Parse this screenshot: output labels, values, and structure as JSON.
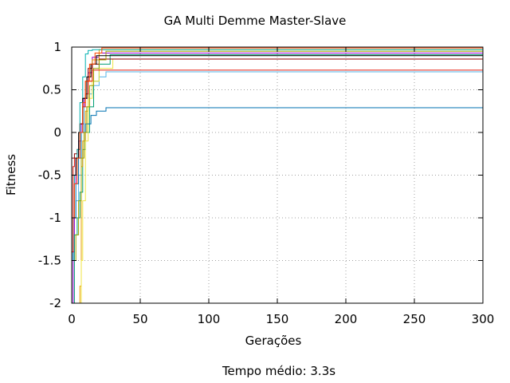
{
  "chart_data": {
    "type": "line",
    "title": "GA Multi Demme Master-Slave",
    "xlabel": "Gerações",
    "ylabel": "Fitness",
    "footer": "Tempo médio: 3.3s",
    "xlim": [
      0,
      300
    ],
    "ylim": [
      -2,
      1
    ],
    "xticks": [
      0,
      50,
      100,
      150,
      200,
      250,
      300
    ],
    "yticks": [
      -2,
      -1.5,
      -1,
      -0.5,
      0,
      0.5,
      1
    ],
    "ytick_labels": [
      "-2",
      "-1.5",
      "-1",
      "-0.5",
      "0",
      "0.5",
      "1"
    ],
    "grid": true,
    "legend": "none",
    "series": [
      {
        "color": "#9400d3",
        "x": [
          0,
          1,
          2,
          3,
          5,
          7,
          9,
          12,
          15,
          20,
          300
        ],
        "y": [
          -2,
          -1.4,
          -0.6,
          -0.3,
          -0.1,
          0.1,
          0.4,
          0.7,
          0.88,
          0.93,
          0.93
        ]
      },
      {
        "color": "#009e73",
        "x": [
          0,
          2,
          4,
          6,
          8,
          10,
          13,
          16,
          20,
          28,
          300
        ],
        "y": [
          -2,
          -1.2,
          -1.0,
          -0.7,
          -0.2,
          0.0,
          0.3,
          0.6,
          0.8,
          0.91,
          0.91
        ]
      },
      {
        "color": "#56b4e9",
        "x": [
          0,
          1,
          3,
          5,
          7,
          9,
          12,
          15,
          20,
          25,
          300
        ],
        "y": [
          -1.5,
          -1.0,
          -0.8,
          -0.5,
          0.0,
          0.3,
          0.45,
          0.55,
          0.65,
          0.71,
          0.71
        ]
      },
      {
        "color": "#e69f00",
        "x": [
          0,
          4,
          6,
          7,
          8,
          10,
          12,
          15,
          20,
          300
        ],
        "y": [
          -2,
          -2.0,
          -1.8,
          -0.4,
          -0.1,
          0.25,
          0.6,
          0.85,
          0.97,
          0.97
        ]
      },
      {
        "color": "#f0e442",
        "x": [
          0,
          5,
          7,
          8,
          10,
          12,
          15,
          20,
          30,
          300
        ],
        "y": [
          -2,
          -2.0,
          -1.5,
          -0.8,
          -0.1,
          0.4,
          0.6,
          0.75,
          0.86,
          0.86
        ]
      },
      {
        "color": "#0072b2",
        "x": [
          0,
          1,
          3,
          5,
          7,
          10,
          14,
          18,
          25,
          300
        ],
        "y": [
          -1.5,
          -1.0,
          -0.6,
          -0.3,
          0.0,
          0.1,
          0.2,
          0.25,
          0.29,
          0.29
        ]
      },
      {
        "color": "#e51e10",
        "x": [
          0,
          1,
          2,
          4,
          6,
          8,
          10,
          12,
          15,
          300
        ],
        "y": [
          -1.4,
          -0.4,
          -0.3,
          -0.2,
          0.1,
          0.3,
          0.45,
          0.6,
          0.73,
          0.73
        ]
      },
      {
        "color": "#8b0000",
        "x": [
          0,
          2,
          4,
          6,
          8,
          10,
          12,
          15,
          20,
          300
        ],
        "y": [
          -0.3,
          -0.25,
          -0.2,
          0.1,
          0.4,
          0.6,
          0.75,
          0.8,
          0.86,
          0.86
        ]
      },
      {
        "color": "#00b0b0",
        "x": [
          0,
          2,
          4,
          6,
          8,
          10,
          12,
          15,
          300
        ],
        "y": [
          -1.0,
          -0.5,
          -0.2,
          0.35,
          0.65,
          0.92,
          0.96,
          0.97,
          0.97
        ]
      },
      {
        "color": "#a0a000",
        "x": [
          0,
          3,
          5,
          7,
          9,
          11,
          13,
          16,
          20,
          25,
          300
        ],
        "y": [
          -1.5,
          -1.2,
          -0.8,
          -0.3,
          0.0,
          0.3,
          0.55,
          0.75,
          0.85,
          0.95,
          0.95
        ]
      },
      {
        "color": "#000000",
        "x": [
          0,
          3,
          5,
          8,
          11,
          14,
          18,
          300
        ],
        "y": [
          -0.5,
          -0.3,
          0.0,
          0.4,
          0.65,
          0.8,
          0.9,
          0.9
        ]
      },
      {
        "color": "#ff4500",
        "x": [
          0,
          2,
          4,
          6,
          8,
          10,
          13,
          17,
          22,
          300
        ],
        "y": [
          -1.0,
          -0.6,
          -0.3,
          0.0,
          0.35,
          0.6,
          0.8,
          0.93,
          0.99,
          0.99
        ]
      }
    ]
  }
}
